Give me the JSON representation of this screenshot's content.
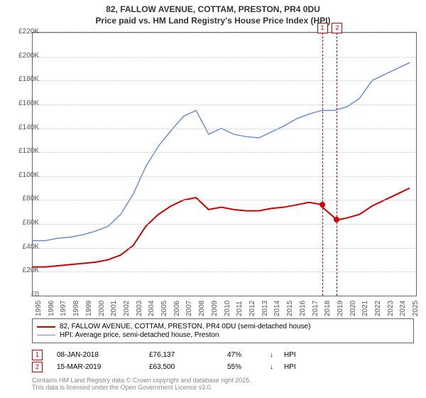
{
  "title_line1": "82, FALLOW AVENUE, COTTAM, PRESTON, PR4 0DU",
  "title_line2": "Price paid vs. HM Land Registry's House Price Index (HPI)",
  "chart": {
    "type": "line",
    "background_color": "#ffffff",
    "grid_color": "#cccccc",
    "border_color": "#666666",
    "xlim": [
      1995,
      2025.5
    ],
    "ylim": [
      0,
      220000
    ],
    "ytick_step": 20000,
    "ytick_labels": [
      "£0",
      "£20K",
      "£40K",
      "£60K",
      "£80K",
      "£100K",
      "£120K",
      "£140K",
      "£160K",
      "£180K",
      "£200K",
      "£220K"
    ],
    "xtick_step": 1,
    "xtick_labels": [
      "1995",
      "1996",
      "1997",
      "1998",
      "1999",
      "2000",
      "2001",
      "2002",
      "2003",
      "2004",
      "2005",
      "2006",
      "2007",
      "2008",
      "2009",
      "2010",
      "2011",
      "2012",
      "2013",
      "2014",
      "2015",
      "2016",
      "2017",
      "2018",
      "2019",
      "2020",
      "2021",
      "2022",
      "2023",
      "2024",
      "2025"
    ],
    "series": [
      {
        "name": "price_paid",
        "color": "#cc0000",
        "width": 2,
        "legend": "82, FALLOW AVENUE, COTTAM, PRESTON, PR4 0DU (semi-detached house)",
        "points": [
          [
            1995,
            24000
          ],
          [
            1996,
            24000
          ],
          [
            1997,
            25000
          ],
          [
            1998,
            26000
          ],
          [
            1999,
            27000
          ],
          [
            2000,
            28000
          ],
          [
            2001,
            30000
          ],
          [
            2002,
            34000
          ],
          [
            2003,
            42000
          ],
          [
            2004,
            58000
          ],
          [
            2005,
            68000
          ],
          [
            2006,
            75000
          ],
          [
            2007,
            80000
          ],
          [
            2008,
            82000
          ],
          [
            2009,
            72000
          ],
          [
            2010,
            74000
          ],
          [
            2011,
            72000
          ],
          [
            2012,
            71000
          ],
          [
            2013,
            71000
          ],
          [
            2014,
            73000
          ],
          [
            2015,
            74000
          ],
          [
            2016,
            76000
          ],
          [
            2017,
            78000
          ],
          [
            2018,
            76137
          ],
          [
            2018.05,
            74000
          ],
          [
            2019.2,
            63500
          ],
          [
            2019.3,
            63500
          ],
          [
            2020,
            65000
          ],
          [
            2021,
            68000
          ],
          [
            2022,
            75000
          ],
          [
            2023,
            80000
          ],
          [
            2024,
            85000
          ],
          [
            2025,
            90000
          ]
        ]
      },
      {
        "name": "hpi",
        "color": "#6a8fd0",
        "width": 1.5,
        "legend": "HPI: Average price, semi-detached house, Preston",
        "points": [
          [
            1995,
            46000
          ],
          [
            1996,
            46000
          ],
          [
            1997,
            48000
          ],
          [
            1998,
            49000
          ],
          [
            1999,
            51000
          ],
          [
            2000,
            54000
          ],
          [
            2001,
            58000
          ],
          [
            2002,
            68000
          ],
          [
            2003,
            85000
          ],
          [
            2004,
            108000
          ],
          [
            2005,
            125000
          ],
          [
            2006,
            138000
          ],
          [
            2007,
            150000
          ],
          [
            2008,
            155000
          ],
          [
            2009,
            135000
          ],
          [
            2010,
            140000
          ],
          [
            2011,
            135000
          ],
          [
            2012,
            133000
          ],
          [
            2013,
            132000
          ],
          [
            2014,
            137000
          ],
          [
            2015,
            142000
          ],
          [
            2016,
            148000
          ],
          [
            2017,
            152000
          ],
          [
            2018,
            155000
          ],
          [
            2019,
            155000
          ],
          [
            2020,
            158000
          ],
          [
            2021,
            165000
          ],
          [
            2022,
            180000
          ],
          [
            2023,
            185000
          ],
          [
            2024,
            190000
          ],
          [
            2025,
            195000
          ]
        ]
      }
    ],
    "markers": [
      {
        "id": "1",
        "x": 2018.02,
        "color": "#cc0000",
        "dot_y": 76137
      },
      {
        "id": "2",
        "x": 2019.2,
        "color": "#cc0000",
        "dot_y": 63500
      }
    ]
  },
  "transactions": [
    {
      "id": "1",
      "color": "#cc0000",
      "date": "08-JAN-2018",
      "price": "£76,137",
      "pct": "47%",
      "arrow": "↓",
      "vs": "HPI"
    },
    {
      "id": "2",
      "color": "#cc0000",
      "date": "15-MAR-2019",
      "price": "£63,500",
      "pct": "55%",
      "arrow": "↓",
      "vs": "HPI"
    }
  ],
  "footer_line1": "Contains HM Land Registry data © Crown copyright and database right 2025.",
  "footer_line2": "This data is licensed under the Open Government Licence v3.0.",
  "label_fontsize": 10,
  "title_fontsize": 12
}
